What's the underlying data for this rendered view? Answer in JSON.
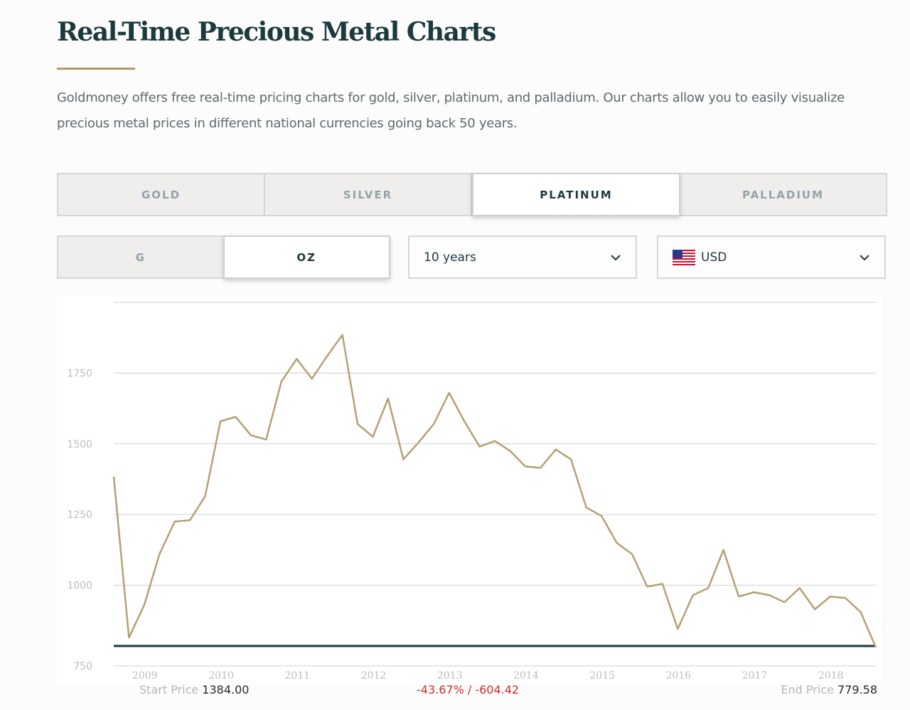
{
  "page": {
    "title": "Real-Time Precious Metal Charts",
    "intro": "Goldmoney offers free real-time pricing charts for gold, silver, platinum, and palladium. Our charts allow you to easily visualize precious metal prices in different national currencies going back 50 years."
  },
  "metal_tabs": [
    {
      "label": "GOLD",
      "active": false
    },
    {
      "label": "SILVER",
      "active": false
    },
    {
      "label": "PLATINUM",
      "active": true
    },
    {
      "label": "PALLADIUM",
      "active": false
    }
  ],
  "unit_toggle": [
    {
      "label": "G",
      "active": false
    },
    {
      "label": "OZ",
      "active": true
    }
  ],
  "period_select": {
    "value": "10 years",
    "icon": "chevron-down-icon"
  },
  "currency_select": {
    "value": "USD",
    "flag_icon": "us-flag-icon",
    "icon": "chevron-down-icon"
  },
  "stats": {
    "start_label": "Start Price",
    "start_value": "1384.00",
    "change": "-43.67% / -604.42",
    "end_label": "End Price",
    "end_value": "779.58"
  },
  "colors": {
    "line": "#b5a074",
    "baseline": "#1c3a3d",
    "grid": "#cfcfcf",
    "negative": "#c9302c",
    "title": "#1c3a3d",
    "accent": "#b5996a"
  },
  "chart_data": {
    "type": "line",
    "title": "",
    "xlabel": "",
    "ylabel": "",
    "xlim": [
      2008.6,
      2018.6
    ],
    "ylim": [
      750,
      2000
    ],
    "yticks": [
      750,
      1000,
      1250,
      1500,
      1750
    ],
    "xticks": [
      "2009",
      "2010",
      "2011",
      "2012",
      "2013",
      "2014",
      "2015",
      "2016",
      "2017",
      "2018"
    ],
    "grid": true,
    "series": [
      {
        "x": [
          2008.6,
          2008.8,
          2009.0,
          2009.2,
          2009.4,
          2009.6,
          2009.8,
          2010.0,
          2010.2,
          2010.4,
          2010.6,
          2010.8,
          2011.0,
          2011.2,
          2011.4,
          2011.6,
          2011.8,
          2012.0,
          2012.2,
          2012.4,
          2012.6,
          2012.8,
          2013.0,
          2013.2,
          2013.4,
          2013.6,
          2013.8,
          2014.0,
          2014.2,
          2014.4,
          2014.6,
          2014.8,
          2015.0,
          2015.2,
          2015.4,
          2015.6,
          2015.8,
          2016.0,
          2016.2,
          2016.4,
          2016.6,
          2016.8,
          2017.0,
          2017.2,
          2017.4,
          2017.6,
          2017.8,
          2018.0,
          2018.2,
          2018.4,
          2018.6
        ],
        "y": [
          1384,
          815,
          930,
          1110,
          1225,
          1230,
          1315,
          1580,
          1595,
          1530,
          1515,
          1720,
          1800,
          1730,
          1810,
          1885,
          1570,
          1525,
          1660,
          1445,
          1505,
          1570,
          1680,
          1580,
          1490,
          1510,
          1475,
          1420,
          1415,
          1480,
          1445,
          1275,
          1245,
          1150,
          1110,
          995,
          1005,
          845,
          965,
          990,
          1125,
          960,
          975,
          965,
          940,
          990,
          915,
          960,
          955,
          905,
          780
        ]
      }
    ]
  }
}
